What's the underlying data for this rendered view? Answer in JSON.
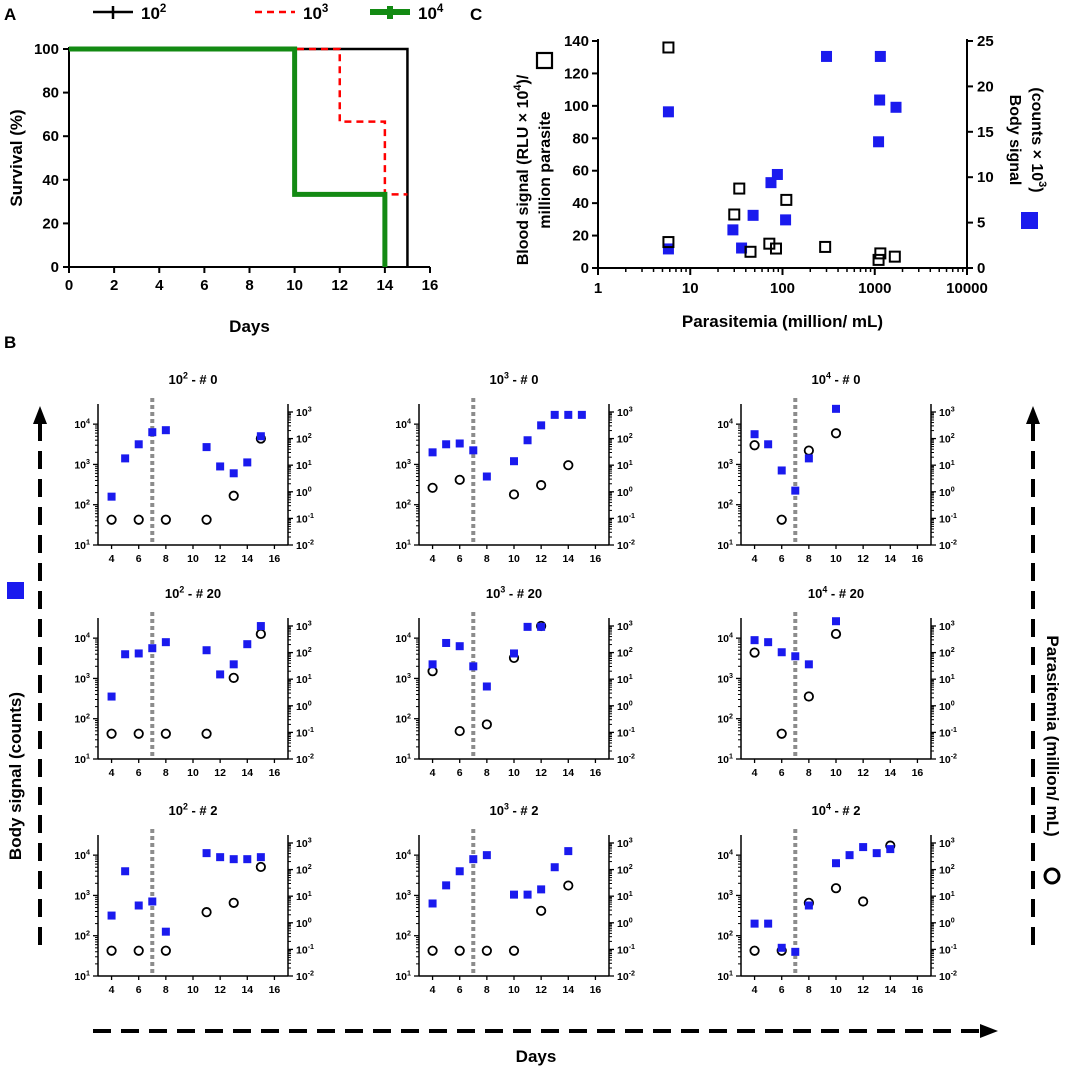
{
  "panel_labels": {
    "a": "A",
    "b": "B",
    "c": "C"
  },
  "colors": {
    "black": "#000000",
    "red": "#ff0000",
    "green": "#138a13",
    "blue": "#1a1aee",
    "gray": "#8c8c8c"
  },
  "chart_data": [
    {
      "id": "A",
      "type": "line",
      "title": "",
      "xlabel": "Days",
      "ylabel": "Survival (%)",
      "xlim": [
        0,
        16
      ],
      "ylim": [
        0,
        100
      ],
      "xticks": [
        "0",
        "2",
        "4",
        "6",
        "8",
        "10",
        "12",
        "14",
        "16"
      ],
      "yticks": [
        "0",
        "20",
        "40",
        "60",
        "80",
        "100"
      ],
      "legend": [
        {
          "base": "10",
          "exp": "2"
        },
        {
          "base": "10",
          "exp": "3"
        },
        {
          "base": "10",
          "exp": "4"
        }
      ],
      "series": [
        {
          "name": "10^2",
          "style": "solid",
          "color": "#000000",
          "x": [
            0,
            15,
            15
          ],
          "y": [
            100,
            100,
            0
          ]
        },
        {
          "name": "10^3",
          "style": "dashed",
          "color": "#ff0000",
          "x": [
            0,
            12,
            12,
            14,
            14,
            15
          ],
          "y": [
            100,
            100,
            66.7,
            66.7,
            33.3,
            33.3
          ]
        },
        {
          "name": "10^4",
          "style": "solid",
          "color": "#138a13",
          "x": [
            0,
            10,
            10,
            14,
            14
          ],
          "y": [
            100,
            100,
            33.3,
            33.3,
            0
          ]
        }
      ]
    },
    {
      "id": "C",
      "type": "scatter",
      "xlabel": "Parasitemia (million/ mL)",
      "ylabel_left_line1": "Blood signal (RLU × 10",
      "ylabel_left_sup": "4",
      "ylabel_left_close": ")/",
      "ylabel_left_line2": "million parasite",
      "ylabel_right_line1": "Body signal",
      "ylabel_right_line2": "(counts × 10",
      "ylabel_right_sup": "3",
      "ylabel_right_close": ")",
      "xscale": "log",
      "xlim": [
        1,
        10000
      ],
      "xticks": [
        "1",
        "10",
        "100",
        "1000",
        "10000"
      ],
      "ylim_left": [
        0,
        140
      ],
      "yticks_left": [
        "0",
        "20",
        "40",
        "60",
        "80",
        "100",
        "120",
        "140"
      ],
      "ylim_right": [
        0,
        25
      ],
      "yticks_right": [
        "0",
        "5",
        "10",
        "15",
        "20",
        "25"
      ],
      "series": [
        {
          "name": "Blood signal",
          "marker": "open-square",
          "axis": "left",
          "points": [
            [
              5.8,
              136
            ],
            [
              5.8,
              16
            ],
            [
              34,
              49
            ],
            [
              30,
              33
            ],
            [
              45,
              10
            ],
            [
              72,
              15
            ],
            [
              85,
              12
            ],
            [
              110,
              42
            ],
            [
              290,
              13
            ],
            [
              1100,
              5
            ],
            [
              1150,
              9
            ],
            [
              1650,
              7
            ]
          ]
        },
        {
          "name": "Body signal",
          "marker": "filled-square",
          "axis": "right",
          "points": [
            [
              5.8,
              17.2
            ],
            [
              5.8,
              2.1
            ],
            [
              29,
              4.2
            ],
            [
              36,
              2.2
            ],
            [
              48,
              5.8
            ],
            [
              75,
              9.4
            ],
            [
              88,
              10.3
            ],
            [
              108,
              5.3
            ],
            [
              300,
              23.3
            ],
            [
              1100,
              13.9
            ],
            [
              1130,
              18.5
            ],
            [
              1150,
              23.3
            ],
            [
              1700,
              17.7
            ]
          ]
        }
      ]
    },
    {
      "id": "B",
      "type": "scatter",
      "xlabel": "Days",
      "ylabel_left": "Body signal (counts)",
      "ylabel_right": "Parasitemia (million/ mL)",
      "xlim": [
        3,
        17
      ],
      "xticks": [
        "4",
        "6",
        "8",
        "10",
        "12",
        "14",
        "16"
      ],
      "y_left_ticks": [
        {
          "b": "10",
          "e": "1"
        },
        {
          "b": "10",
          "e": "2"
        },
        {
          "b": "10",
          "e": "3"
        },
        {
          "b": "10",
          "e": "4"
        }
      ],
      "y_right_ticks": [
        {
          "b": "10",
          "e": "-2"
        },
        {
          "b": "10",
          "e": "-1"
        },
        {
          "b": "10",
          "e": "0"
        },
        {
          "b": "10",
          "e": "1"
        },
        {
          "b": "10",
          "e": "2"
        },
        {
          "b": "10",
          "e": "3"
        }
      ],
      "treatment_day": 7,
      "panels": [
        {
          "title_base": "10",
          "title_exp": "2",
          "title_suffix": " - # 0",
          "body": [
            [
              4,
              2.2
            ],
            [
              5,
              3.15
            ],
            [
              6,
              3.5
            ],
            [
              7,
              3.8
            ],
            [
              8,
              3.85
            ],
            [
              11,
              3.43
            ],
            [
              12,
              2.95
            ],
            [
              13,
              2.78
            ],
            [
              14,
              3.05
            ],
            [
              15,
              3.7
            ]
          ],
          "para": [
            [
              4,
              -1.05
            ],
            [
              6,
              -1.05
            ],
            [
              8,
              -1.05
            ],
            [
              11,
              -1.05
            ],
            [
              13,
              -0.15
            ],
            [
              15,
              2.0
            ]
          ]
        },
        {
          "title_base": "10",
          "title_exp": "3",
          "title_suffix": " - # 0",
          "body": [
            [
              4,
              3.3
            ],
            [
              5,
              3.5
            ],
            [
              6,
              3.52
            ],
            [
              7,
              3.35
            ],
            [
              8,
              2.7
            ],
            [
              10,
              3.08
            ],
            [
              11,
              3.6
            ],
            [
              12,
              3.97
            ],
            [
              13,
              4.23
            ],
            [
              14,
              4.23
            ],
            [
              15,
              4.23
            ]
          ],
          "para": [
            [
              4,
              0.15
            ],
            [
              6,
              0.45
            ],
            [
              10,
              -0.1
            ],
            [
              12,
              0.25
            ],
            [
              14,
              1.0
            ]
          ]
        },
        {
          "title_base": "10",
          "title_exp": "4",
          "title_suffix": " - # 0",
          "body": [
            [
              4,
              3.75
            ],
            [
              5,
              3.5
            ],
            [
              6,
              2.85
            ],
            [
              7,
              2.35
            ],
            [
              8,
              3.15
            ],
            [
              10,
              4.38
            ]
          ],
          "para": [
            [
              4,
              1.75
            ],
            [
              6,
              -1.05
            ],
            [
              8,
              1.55
            ],
            [
              10,
              2.2
            ]
          ]
        },
        {
          "title_base": "10",
          "title_exp": "2",
          "title_suffix": " - # 20",
          "body": [
            [
              4,
              2.55
            ],
            [
              5,
              3.6
            ],
            [
              6,
              3.62
            ],
            [
              7,
              3.75
            ],
            [
              8,
              3.9
            ],
            [
              11,
              3.7
            ],
            [
              12,
              3.1
            ],
            [
              13,
              3.35
            ],
            [
              14,
              3.85
            ],
            [
              15,
              4.3
            ]
          ],
          "para": [
            [
              4,
              -1.05
            ],
            [
              6,
              -1.05
            ],
            [
              8,
              -1.05
            ],
            [
              11,
              -1.05
            ],
            [
              13,
              1.05
            ],
            [
              15,
              2.7
            ]
          ]
        },
        {
          "title_base": "10",
          "title_exp": "3",
          "title_suffix": " - # 20",
          "body": [
            [
              4,
              3.35
            ],
            [
              5,
              3.88
            ],
            [
              6,
              3.8
            ],
            [
              7,
              3.3
            ],
            [
              8,
              2.8
            ],
            [
              10,
              3.62
            ],
            [
              11,
              4.28
            ],
            [
              12,
              4.28
            ]
          ],
          "para": [
            [
              4,
              1.3
            ],
            [
              6,
              -0.95
            ],
            [
              8,
              -0.7
            ],
            [
              10,
              1.8
            ],
            [
              12,
              3.0
            ]
          ]
        },
        {
          "title_base": "10",
          "title_exp": "4",
          "title_suffix": " - # 20",
          "body": [
            [
              4,
              3.95
            ],
            [
              5,
              3.9
            ],
            [
              6,
              3.65
            ],
            [
              7,
              3.55
            ],
            [
              8,
              3.35
            ],
            [
              10,
              4.42
            ]
          ],
          "para": [
            [
              4,
              2.0
            ],
            [
              6,
              -1.05
            ],
            [
              8,
              0.35
            ],
            [
              10,
              2.7
            ]
          ]
        },
        {
          "title_base": "10",
          "title_exp": "2",
          "title_suffix": " - # 2",
          "body": [
            [
              4,
              2.5
            ],
            [
              5,
              3.6
            ],
            [
              6,
              2.75
            ],
            [
              7,
              2.85
            ],
            [
              8,
              2.1
            ],
            [
              11,
              4.05
            ],
            [
              12,
              3.95
            ],
            [
              13,
              3.9
            ],
            [
              14,
              3.9
            ],
            [
              15,
              3.95
            ]
          ],
          "para": [
            [
              4,
              -1.05
            ],
            [
              6,
              -1.05
            ],
            [
              8,
              -1.05
            ],
            [
              11,
              0.4
            ],
            [
              13,
              0.75
            ],
            [
              15,
              2.1
            ]
          ]
        },
        {
          "title_base": "10",
          "title_exp": "3",
          "title_suffix": " - # 2",
          "body": [
            [
              4,
              2.8
            ],
            [
              5,
              3.25
            ],
            [
              6,
              3.6
            ],
            [
              7,
              3.9
            ],
            [
              8,
              4.0
            ],
            [
              10,
              3.02
            ],
            [
              11,
              3.02
            ],
            [
              12,
              3.15
            ],
            [
              13,
              3.7
            ],
            [
              14,
              4.1
            ]
          ],
          "para": [
            [
              4,
              -1.05
            ],
            [
              6,
              -1.05
            ],
            [
              8,
              -1.05
            ],
            [
              10,
              -1.05
            ],
            [
              12,
              0.45
            ],
            [
              14,
              1.4
            ]
          ]
        },
        {
          "title_base": "10",
          "title_exp": "4",
          "title_suffix": " - # 2",
          "body": [
            [
              4,
              2.3
            ],
            [
              5,
              2.3
            ],
            [
              6,
              1.7
            ],
            [
              7,
              1.6
            ],
            [
              8,
              2.75
            ],
            [
              10,
              3.8
            ],
            [
              11,
              4.0
            ],
            [
              12,
              4.2
            ],
            [
              13,
              4.05
            ],
            [
              14,
              4.15
            ]
          ],
          "para": [
            [
              4,
              -1.05
            ],
            [
              6,
              -1.05
            ],
            [
              8,
              0.75
            ],
            [
              10,
              1.3
            ],
            [
              12,
              0.8
            ],
            [
              14,
              2.9
            ]
          ]
        }
      ]
    }
  ]
}
